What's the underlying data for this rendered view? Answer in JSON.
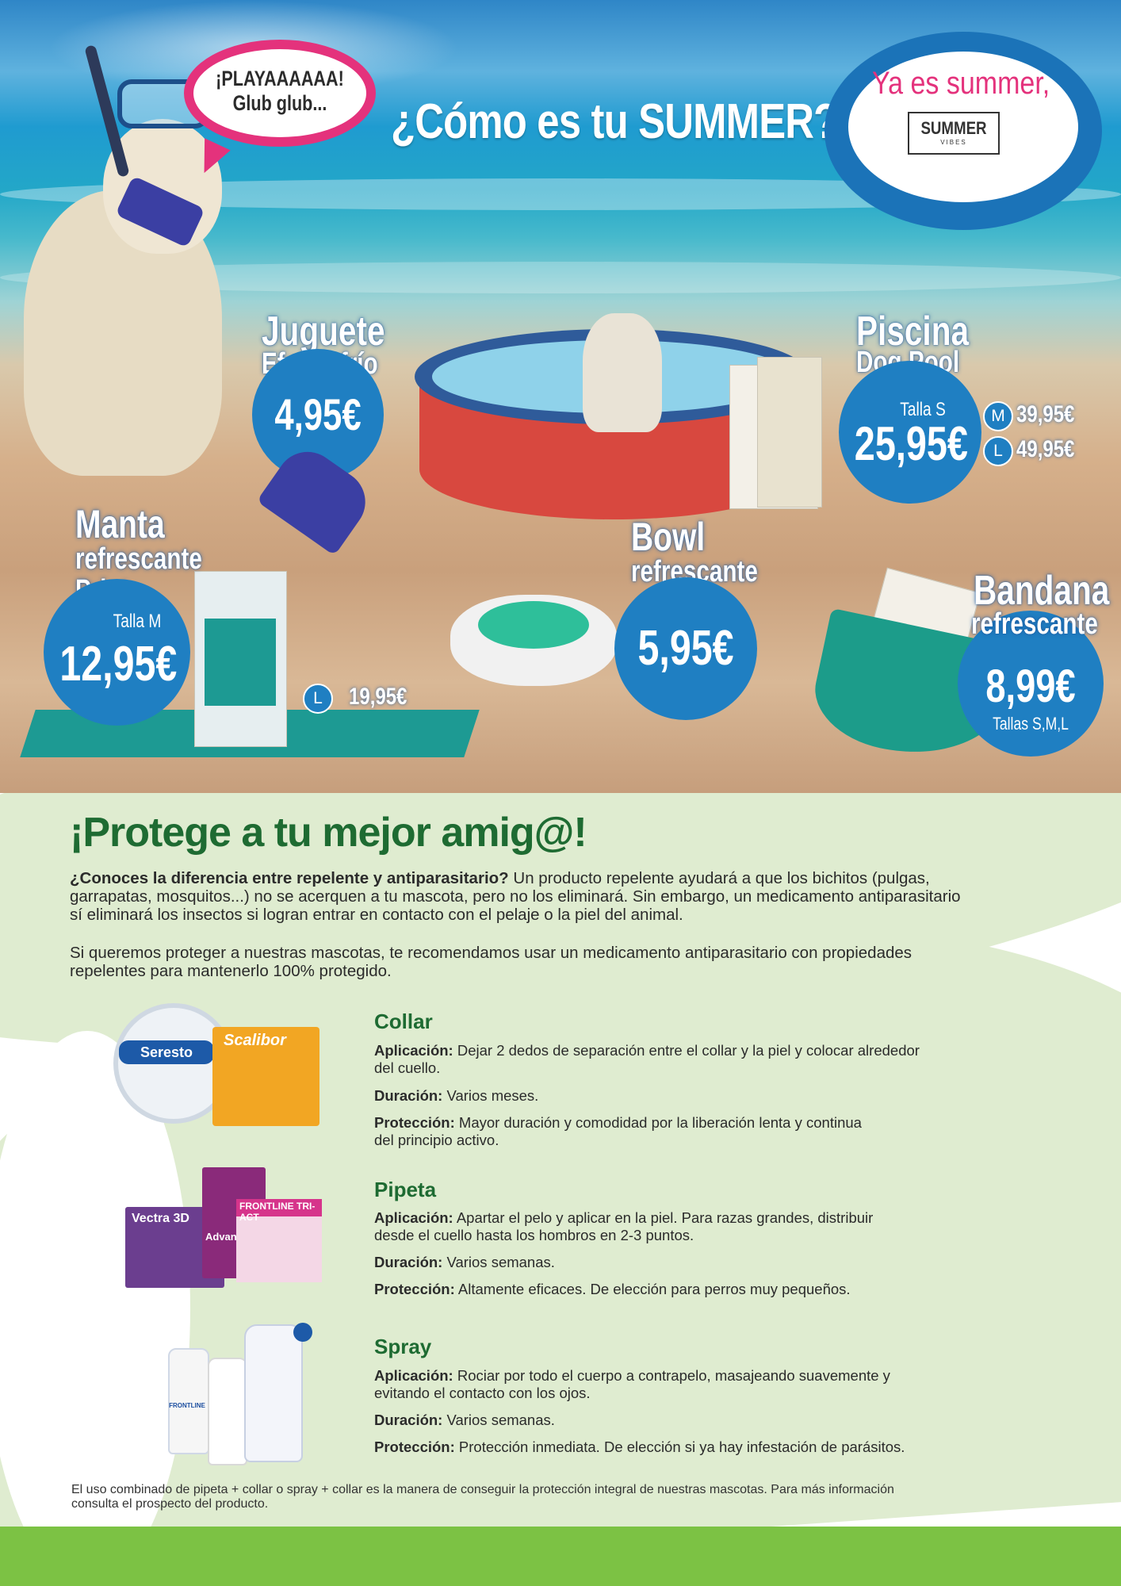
{
  "hero": {
    "speech_bubble": {
      "line1": "¡PLAYAAAAAA!",
      "line2": "Glub glub..."
    },
    "title": "¿Cómo es tu SUMMER?",
    "badge": {
      "tagline": "Ya es summer,",
      "logo_main": "SUMMER",
      "logo_sub": "VIBES"
    },
    "products": {
      "juguete": {
        "name1": "Juguete",
        "name2": "Efecto frío",
        "price": "4,95€"
      },
      "piscina": {
        "name1": "Piscina",
        "name2": "Dog Pool",
        "size_label": "Talla S",
        "price": "25,95€",
        "size_m": "M",
        "price_m": "39,95€",
        "size_l": "L",
        "price_l": "49,95€"
      },
      "manta": {
        "name1": "Manta",
        "name2": "refrescante",
        "name3": "Print",
        "size_label": "Talla M",
        "price": "12,95€",
        "size_l": "L",
        "price_l": "19,95€"
      },
      "bowl": {
        "name1": "Bowl",
        "name2": "refrescante",
        "price": "5,95€"
      },
      "bandana": {
        "name1": "Bandana",
        "name2": "refrescante",
        "price": "8,99€",
        "sizes": "Tallas S,M,L"
      }
    }
  },
  "protect": {
    "heading": "¡Protege a tu mejor amig@!",
    "intro_bold": "¿Conoces la diferencia entre repelente y antiparasitario?",
    "intro_line1_rest": " Un producto repelente ayudará a que los bichitos (pulgas,",
    "intro_line2": "garrapatas, mosquitos...) no se acerquen a tu mascota, pero no los eliminará. Sin embargo, un medicamento antiparasitario",
    "intro_line3": "sí eliminará los insectos si logran entrar en contacto con el pelaje o la piel del animal.",
    "para2_line1": "Si queremos proteger a nuestras mascotas, te recomendamos usar un medicamento antiparasitario con propiedades",
    "para2_line2": "repelentes para mantenerlo 100% protegido.",
    "labels": {
      "application": "Aplicación:",
      "duration": "Duración:",
      "protection": "Protección:"
    },
    "sections": [
      {
        "title": "Collar",
        "application_l1": "Dejar 2 dedos de separación entre el collar y la piel y colocar alrededor",
        "application_l2": "del cuello.",
        "duration": "Varios meses.",
        "protection_l1": "Mayor duración y comodidad por la liberación lenta y continua",
        "protection_l2": "del principio activo.",
        "product_names": [
          "Seresto",
          "Scalibor"
        ]
      },
      {
        "title": "Pipeta",
        "application_l1": "Apartar el pelo y aplicar en la piel. Para razas grandes, distribuir",
        "application_l2": "desde el cuello hasta los hombros en 2-3 puntos.",
        "duration": "Varios semanas.",
        "protection_l1": "Altamente eficaces. De elección para perros muy pequeños.",
        "product_names": [
          "Vectra 3D",
          "Advantix",
          "FRONTLINE TRI-ACT"
        ]
      },
      {
        "title": "Spray",
        "application_l1": "Rociar por todo el cuerpo a contrapelo, masajeando suavemente y",
        "application_l2": "evitando el contacto con los ojos.",
        "duration": "Varios semanas.",
        "protection_l1": "Protección inmediata. De elección si ya hay infestación de parásitos.",
        "product_names": [
          "FRONTLINE"
        ]
      }
    ],
    "footnote_l1": "El uso combinado de pipeta + collar o spray + collar es la manera de conseguir la protección integral de nuestras mascotas. Para más información",
    "footnote_l2": "consulta el prospecto del producto."
  },
  "colors": {
    "brand_green": "#1e6b32",
    "price_blue": "#1f7fc2",
    "bubble_pink": "#e4327c",
    "bar_green": "#7cc244"
  }
}
